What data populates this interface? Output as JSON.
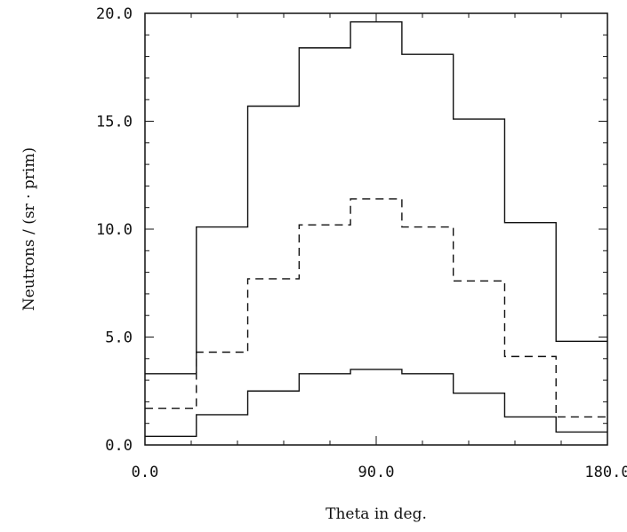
{
  "chart_data": {
    "type": "line",
    "step": true,
    "xlabel": "Theta in deg.",
    "ylabel": "Neutrons / (sr · prim)",
    "xlim": [
      0,
      180
    ],
    "ylim": [
      0,
      20
    ],
    "x_ticks": [
      "0.0",
      "90.0",
      "180.0"
    ],
    "y_ticks": [
      "0.0",
      "5.0",
      "10.0",
      "15.0",
      "20.0"
    ],
    "x_bin_edges": [
      0,
      20,
      40,
      60,
      80,
      100,
      120,
      140,
      160,
      180
    ],
    "series": [
      {
        "style": "solid",
        "values": [
          3.3,
          10.1,
          15.7,
          18.4,
          19.6,
          18.1,
          15.1,
          10.3,
          4.8
        ]
      },
      {
        "style": "dashed",
        "values": [
          1.7,
          4.3,
          7.7,
          10.2,
          11.4,
          10.1,
          7.6,
          4.1,
          1.3
        ]
      },
      {
        "style": "solid",
        "values": [
          0.4,
          1.4,
          2.5,
          3.3,
          3.5,
          3.3,
          2.4,
          1.3,
          0.6
        ]
      }
    ],
    "grid": false,
    "legend": "none"
  }
}
